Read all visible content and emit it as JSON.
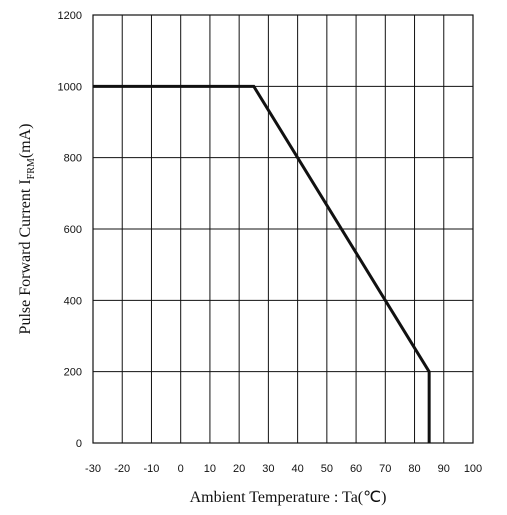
{
  "chart_data": {
    "type": "line",
    "title": "",
    "xlabel": "Ambient Temperature : Ta(℃)",
    "ylabel": {
      "prefix": "Pulse Forward Current I",
      "subscript": "FRM",
      "suffix": "(mA)"
    },
    "xlim": [
      -30,
      100
    ],
    "ylim": [
      0,
      1200
    ],
    "xticks": [
      -30,
      -20,
      -10,
      0,
      10,
      20,
      30,
      40,
      50,
      60,
      70,
      80,
      90,
      100
    ],
    "yticks": [
      0,
      200,
      400,
      600,
      800,
      1000,
      1200
    ],
    "grid": true,
    "legend": "none",
    "series": [
      {
        "x": [
          -30,
          25,
          85,
          85
        ],
        "y": [
          1000,
          1000,
          200,
          0
        ],
        "color": "#111111"
      }
    ]
  }
}
